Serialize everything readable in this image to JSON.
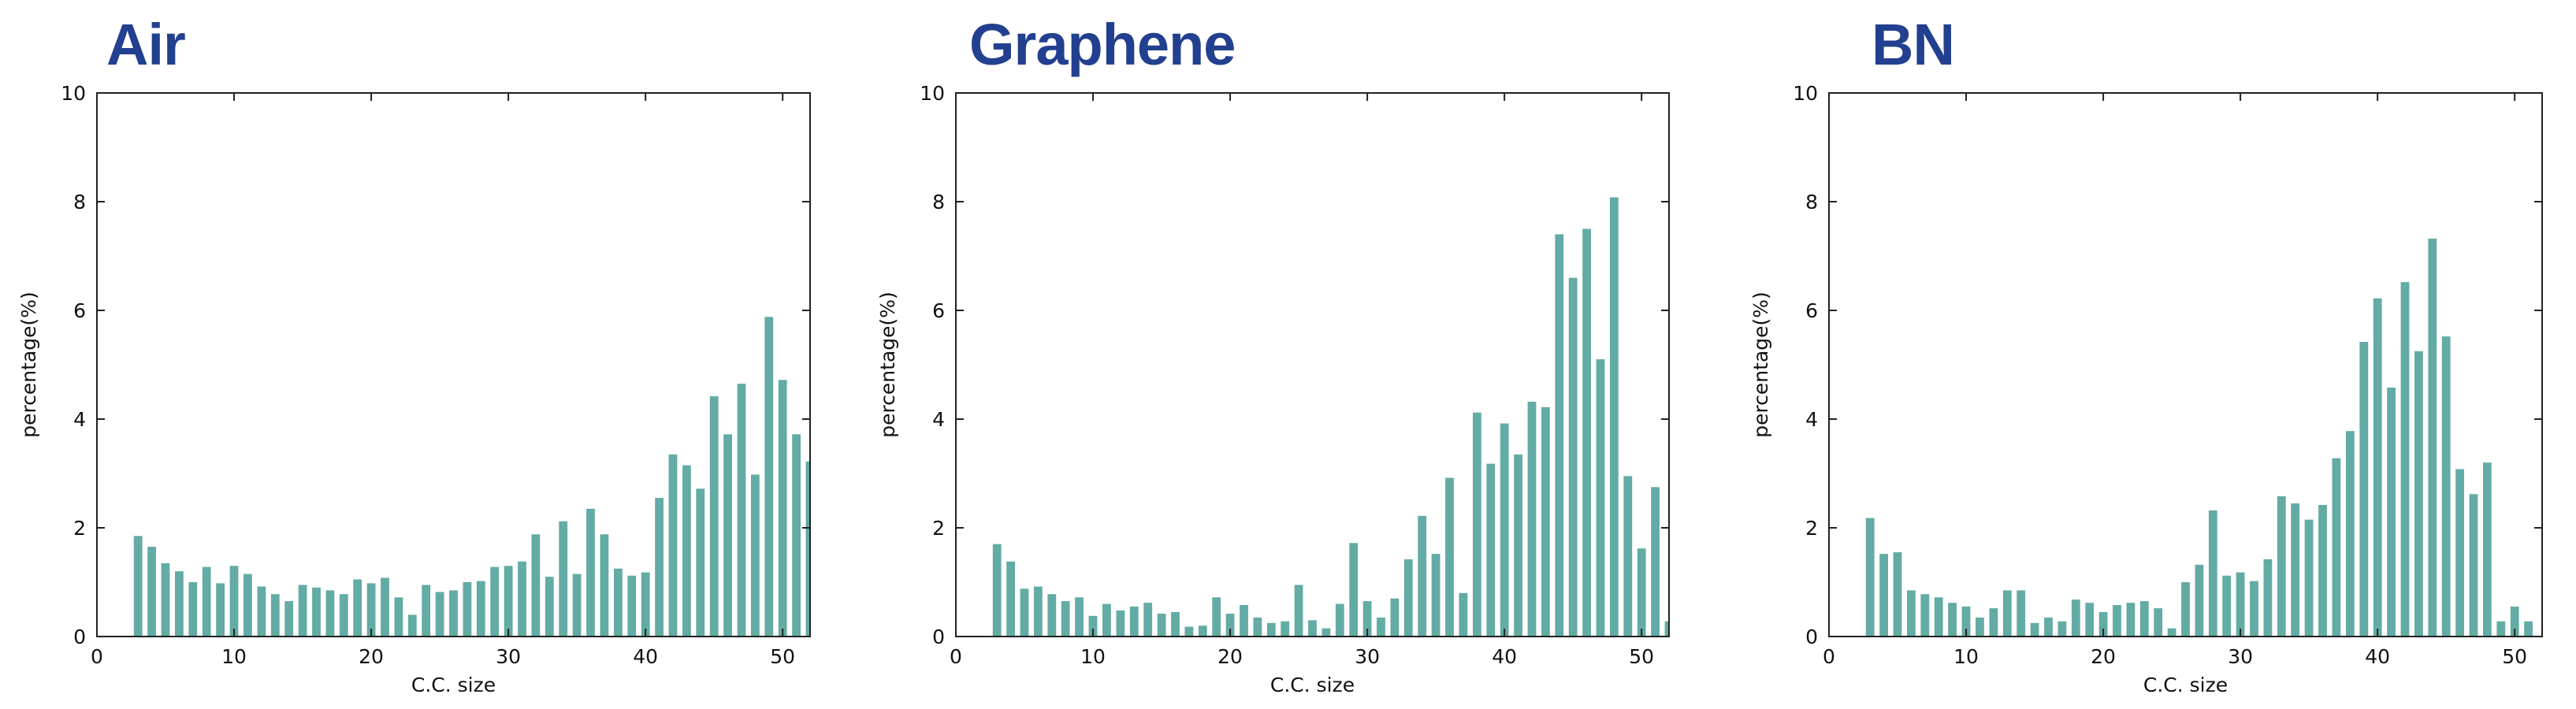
{
  "colors": {
    "bar": "#63aba5",
    "title": "#22408f",
    "axis": "#222222"
  },
  "chart_data": [
    {
      "type": "bar",
      "title": "Air",
      "xlabel": "C.C. size",
      "ylabel": "percentage(%)",
      "xlim": [
        0,
        52
      ],
      "ylim": [
        0,
        10
      ],
      "xticks": [
        0,
        10,
        20,
        30,
        40,
        50
      ],
      "yticks": [
        0,
        2,
        4,
        6,
        8,
        10
      ],
      "x": [
        3,
        4,
        5,
        6,
        7,
        8,
        9,
        10,
        11,
        12,
        13,
        14,
        15,
        16,
        17,
        18,
        19,
        20,
        21,
        22,
        23,
        24,
        25,
        26,
        27,
        28,
        29,
        30,
        31,
        32,
        33,
        34,
        35,
        36,
        37,
        38,
        39,
        40,
        41,
        42,
        43,
        44,
        45,
        46,
        47,
        48,
        49,
        50,
        51,
        52
      ],
      "values": [
        1.85,
        1.65,
        1.35,
        1.2,
        1.0,
        1.28,
        0.98,
        1.3,
        1.15,
        0.92,
        0.78,
        0.65,
        0.95,
        0.9,
        0.85,
        0.78,
        1.05,
        0.98,
        1.08,
        0.72,
        0.4,
        0.95,
        0.82,
        0.85,
        1.0,
        1.02,
        1.28,
        1.3,
        1.38,
        1.88,
        1.1,
        2.12,
        1.15,
        2.35,
        1.88,
        1.25,
        1.12,
        1.18,
        2.55,
        3.35,
        3.15,
        2.72,
        4.42,
        3.72,
        4.65,
        2.98,
        5.88,
        4.72,
        3.72,
        3.22
      ]
    },
    {
      "type": "bar",
      "title": "Graphene",
      "xlabel": "C.C. size",
      "ylabel": "percentage(%)",
      "xlim": [
        0,
        52
      ],
      "ylim": [
        0,
        10
      ],
      "xticks": [
        0,
        10,
        20,
        30,
        40,
        50
      ],
      "yticks": [
        0,
        2,
        4,
        6,
        8,
        10
      ],
      "x": [
        3,
        4,
        5,
        6,
        7,
        8,
        9,
        10,
        11,
        12,
        13,
        14,
        15,
        16,
        17,
        18,
        19,
        20,
        21,
        22,
        23,
        24,
        25,
        26,
        27,
        28,
        29,
        30,
        31,
        32,
        33,
        34,
        35,
        36,
        37,
        38,
        39,
        40,
        41,
        42,
        43,
        44,
        45,
        46,
        47,
        48,
        49,
        50,
        51,
        52
      ],
      "values": [
        1.7,
        1.38,
        0.88,
        0.92,
        0.78,
        0.65,
        0.72,
        0.38,
        0.6,
        0.48,
        0.55,
        0.62,
        0.42,
        0.45,
        0.18,
        0.2,
        0.72,
        0.42,
        0.58,
        0.35,
        0.25,
        0.28,
        0.95,
        0.3,
        0.15,
        0.6,
        1.72,
        0.65,
        0.35,
        0.7,
        1.42,
        2.22,
        1.52,
        2.92,
        0.8,
        4.12,
        3.18,
        3.92,
        3.35,
        4.32,
        4.22,
        7.4,
        6.6,
        7.5,
        5.1,
        8.08,
        2.95,
        1.62,
        2.75,
        0.28
      ]
    },
    {
      "type": "bar",
      "title": "BN",
      "xlabel": "C.C. size",
      "ylabel": "percentage(%)",
      "xlim": [
        0,
        52
      ],
      "ylim": [
        0,
        10
      ],
      "xticks": [
        0,
        10,
        20,
        30,
        40,
        50
      ],
      "yticks": [
        0,
        2,
        4,
        6,
        8,
        10
      ],
      "x": [
        3,
        4,
        5,
        6,
        7,
        8,
        9,
        10,
        11,
        12,
        13,
        14,
        15,
        16,
        17,
        18,
        19,
        20,
        21,
        22,
        23,
        24,
        25,
        26,
        27,
        28,
        29,
        30,
        31,
        32,
        33,
        34,
        35,
        36,
        37,
        38,
        39,
        40,
        41,
        42,
        43,
        44,
        45,
        46,
        47,
        48,
        49,
        50,
        51,
        52
      ],
      "values": [
        2.18,
        1.52,
        1.55,
        0.85,
        0.78,
        0.72,
        0.62,
        0.55,
        0.35,
        0.52,
        0.85,
        0.85,
        0.25,
        0.35,
        0.28,
        0.68,
        0.62,
        0.45,
        0.58,
        0.62,
        0.65,
        0.52,
        0.15,
        1.0,
        1.32,
        2.32,
        1.12,
        1.18,
        1.02,
        1.42,
        2.58,
        2.45,
        2.15,
        2.42,
        3.28,
        3.78,
        5.42,
        6.22,
        4.58,
        6.52,
        5.25,
        7.32,
        5.52,
        3.08,
        2.62,
        3.2,
        0.28,
        0.55,
        0.28,
        0.0
      ]
    }
  ]
}
